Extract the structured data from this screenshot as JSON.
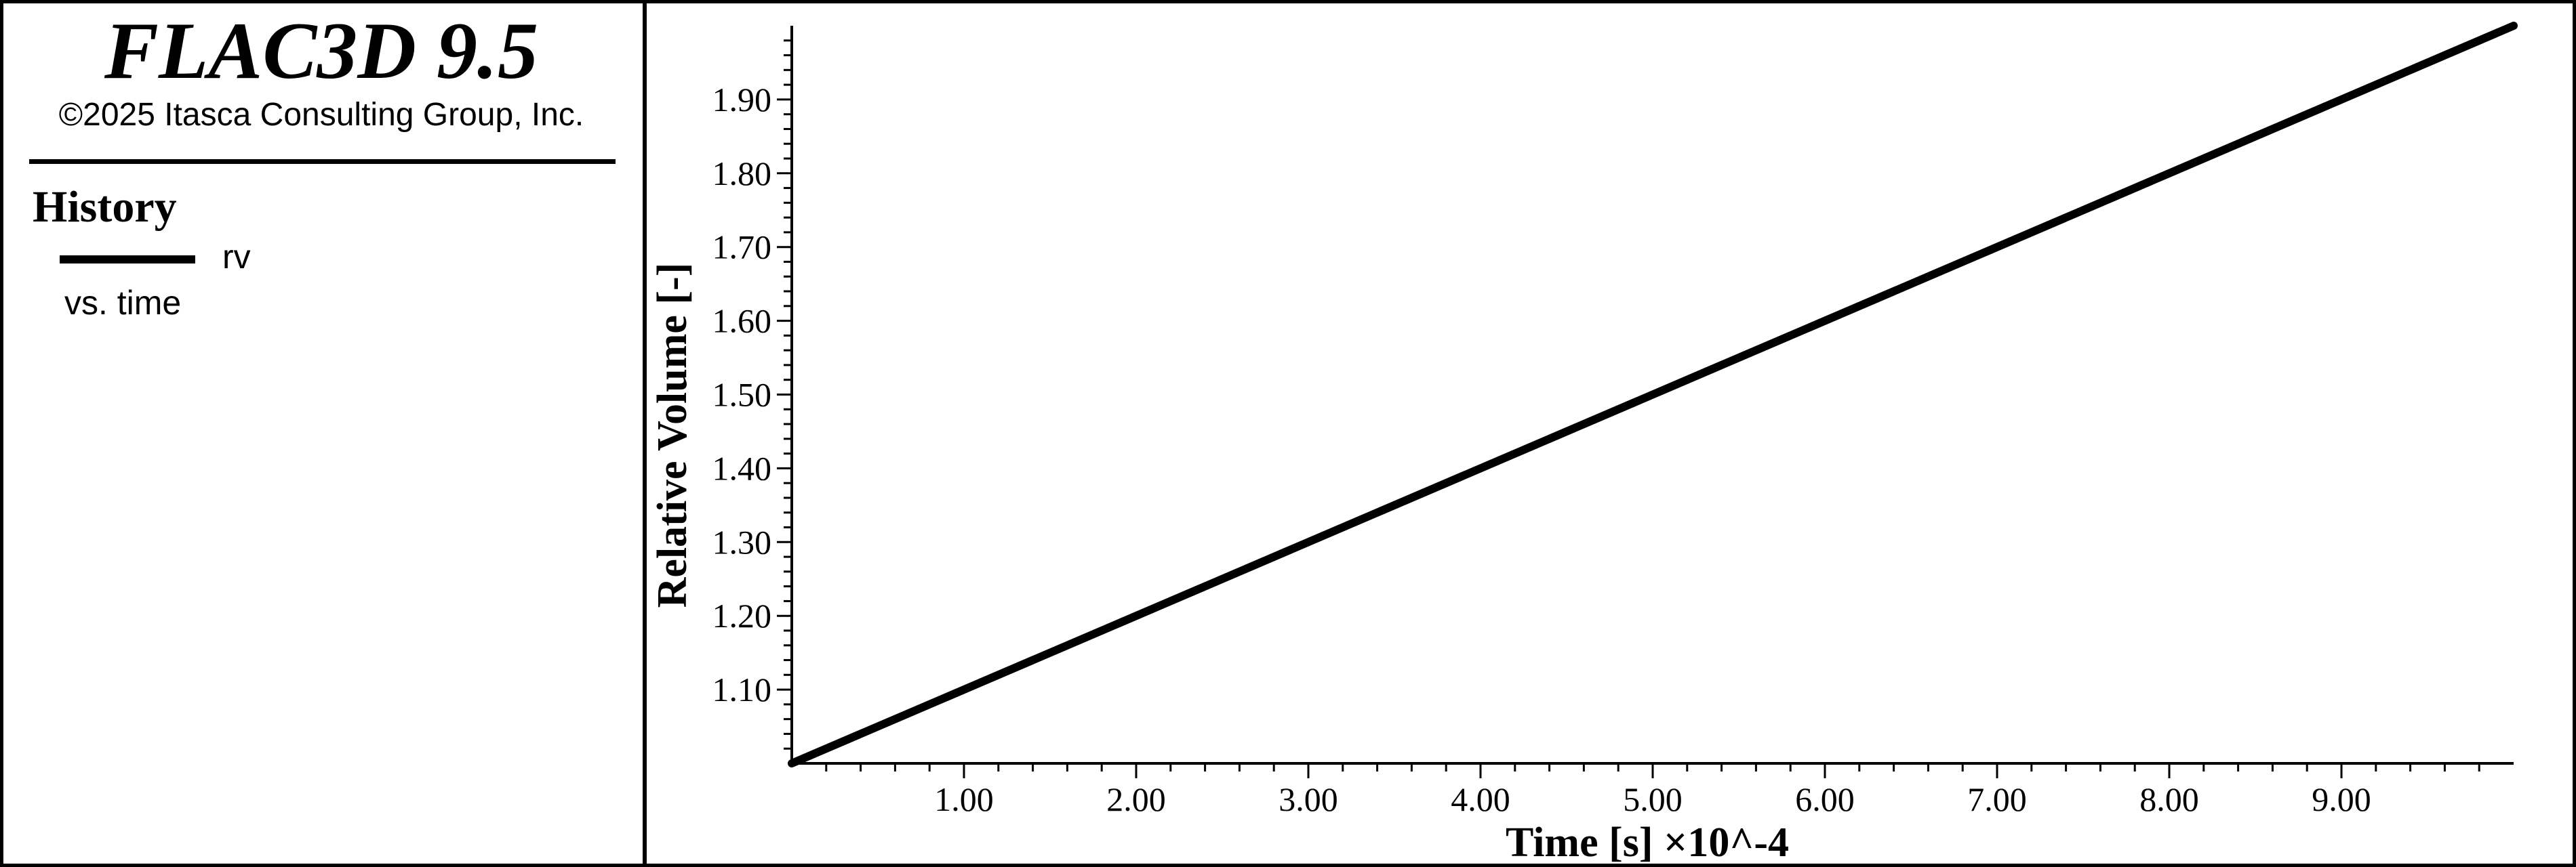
{
  "app": {
    "title": "FLAC3D 9.5",
    "copyright": "©2025 Itasca Consulting Group, Inc."
  },
  "legend": {
    "heading": "History",
    "series_label": "rv",
    "vs_label": "vs. time"
  },
  "chart_data": {
    "type": "line",
    "xlabel": "Time [s] ×10^-4",
    "ylabel": "Relative Volume [-]",
    "x_ticks": [
      "1.00",
      "2.00",
      "3.00",
      "4.00",
      "5.00",
      "6.00",
      "7.00",
      "8.00",
      "9.00"
    ],
    "y_ticks": [
      "1.10",
      "1.20",
      "1.30",
      "1.40",
      "1.50",
      "1.60",
      "1.70",
      "1.80",
      "1.90"
    ],
    "xlim": [
      0,
      10
    ],
    "ylim": [
      1.0,
      2.0
    ],
    "grid": false,
    "series": [
      {
        "name": "rv",
        "color": "#000000",
        "x": [
          0,
          10
        ],
        "y": [
          1.0,
          2.0
        ]
      }
    ]
  }
}
